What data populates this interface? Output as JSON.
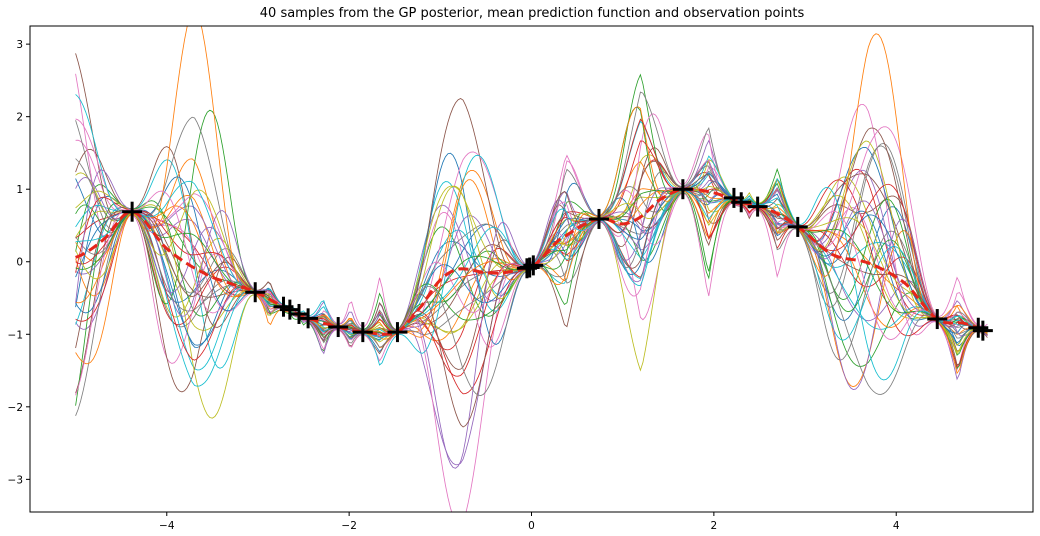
{
  "chart_data": {
    "type": "line",
    "title": "40 samples from the GP posterior, mean prediction function and observation points",
    "xlabel": "",
    "ylabel": "",
    "xlim": [
      -5.5,
      5.5
    ],
    "ylim": [
      -3.45,
      3.25
    ],
    "xticks": [
      -4,
      -2,
      0,
      2,
      4
    ],
    "yticks": [
      -3,
      -2,
      -1,
      0,
      1,
      2,
      3
    ],
    "grid": false,
    "legend": "none",
    "n_samples": 40,
    "mean_color": "#e5261b",
    "observation_color": "#000000",
    "sample_colors": [
      "#1f77b4",
      "#ff7f0e",
      "#2ca02c",
      "#d62728",
      "#9467bd",
      "#8c564b",
      "#e377c2",
      "#7f7f7f",
      "#bcbd22",
      "#17becf"
    ],
    "observations": {
      "x": [
        -4.38,
        -3.03,
        -2.72,
        -2.65,
        -2.55,
        -2.45,
        -2.12,
        -1.85,
        -1.47,
        -0.05,
        -0.02,
        0.02,
        0.74,
        1.66,
        2.22,
        2.3,
        2.48,
        2.92,
        4.45,
        4.9,
        4.95
      ],
      "y": [
        0.69,
        -0.42,
        -0.62,
        -0.66,
        -0.72,
        -0.78,
        -0.9,
        -0.97,
        -0.97,
        -0.09,
        -0.08,
        -0.05,
        0.59,
        1.0,
        0.88,
        0.82,
        0.76,
        0.48,
        -0.79,
        -0.91,
        -0.95
      ]
    },
    "mean": {
      "x": [
        -5.0,
        -4.7,
        -4.38,
        -4.0,
        -3.6,
        -3.3,
        -3.03,
        -2.65,
        -2.45,
        -2.12,
        -1.85,
        -1.47,
        -1.2,
        -1.0,
        -0.8,
        -0.5,
        -0.3,
        -0.05,
        0.0,
        0.3,
        0.74,
        1.0,
        1.2,
        1.4,
        1.66,
        2.0,
        2.3,
        2.6,
        2.92,
        3.3,
        3.7,
        4.1,
        4.45,
        4.75,
        5.0
      ],
      "y": [
        0.06,
        0.3,
        0.69,
        0.18,
        -0.15,
        -0.3,
        -0.42,
        -0.66,
        -0.78,
        -0.9,
        -0.97,
        -0.97,
        -0.6,
        -0.25,
        -0.1,
        -0.15,
        -0.15,
        -0.09,
        -0.07,
        0.3,
        0.59,
        0.52,
        0.62,
        0.85,
        1.0,
        0.95,
        0.82,
        0.72,
        0.48,
        0.1,
        -0.02,
        -0.3,
        -0.79,
        -0.85,
        -0.95
      ]
    }
  }
}
